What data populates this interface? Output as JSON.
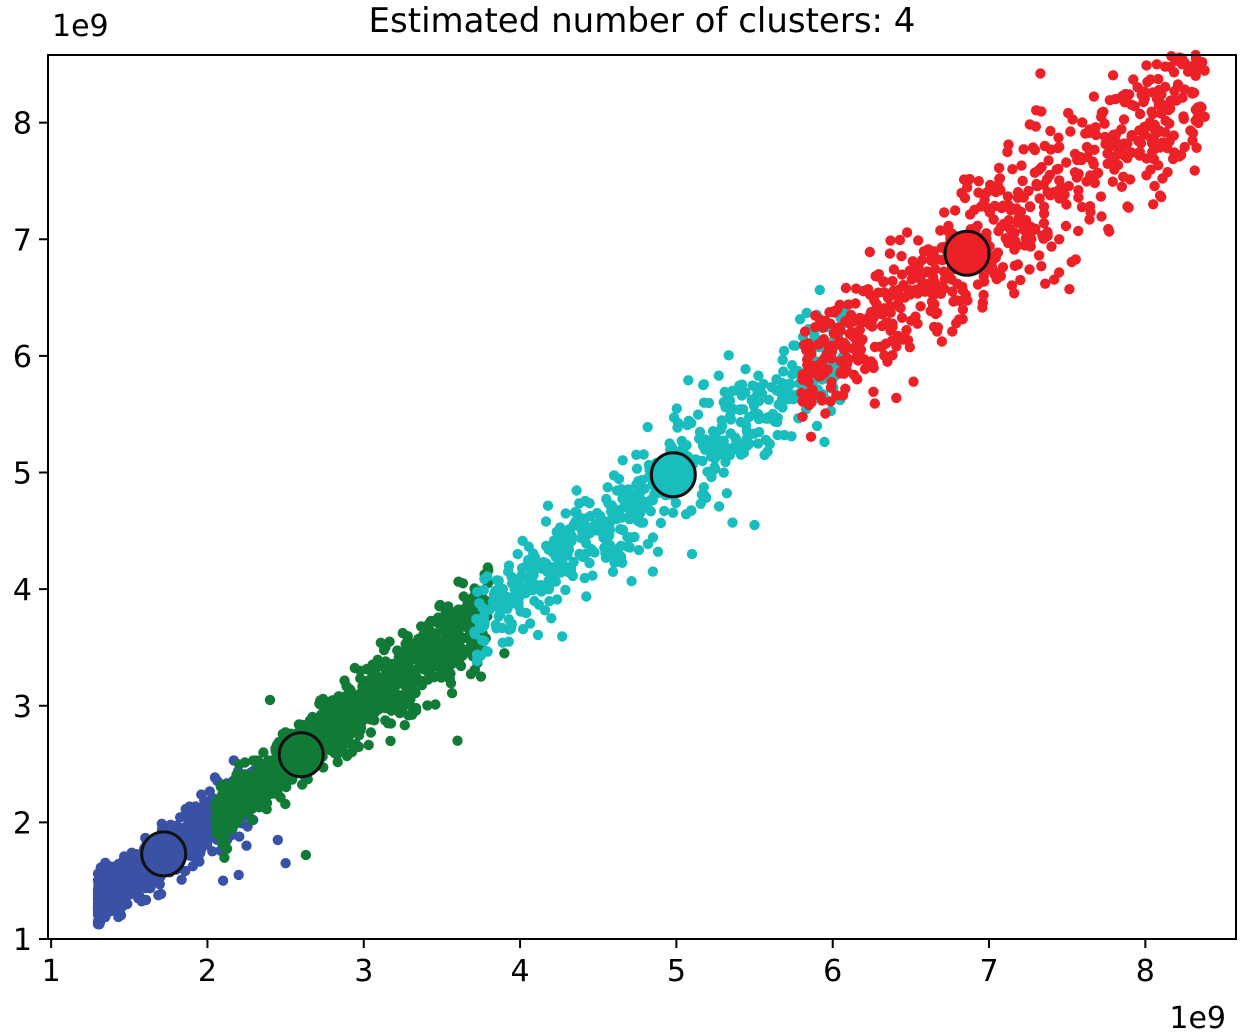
{
  "chart_data": {
    "type": "scatter",
    "title": "Estimated number of clusters: 4",
    "x_offset_text": "1e9",
    "y_offset_text": "1e9",
    "xlim": [
      0.98,
      8.58
    ],
    "ylim": [
      1.0,
      8.58
    ],
    "x_ticks": [
      1,
      2,
      3,
      4,
      5,
      6,
      7,
      8
    ],
    "y_ticks": [
      1,
      2,
      3,
      4,
      5,
      6,
      7,
      8
    ],
    "x_tick_labels": [
      "1",
      "2",
      "3",
      "4",
      "5",
      "6",
      "7",
      "8"
    ],
    "y_tick_labels": [
      "1",
      "2",
      "3",
      "4",
      "5",
      "6",
      "7",
      "8"
    ],
    "grid": false,
    "series": [
      {
        "color": "#3a52a6",
        "x_range": [
          1.3,
          2.3
        ],
        "centroid": [
          1.72,
          1.73
        ],
        "points_approx": 900,
        "outliers": [
          [
            2.1,
            1.5
          ],
          [
            2.5,
            1.65
          ],
          [
            2.45,
            1.85
          ],
          [
            2.25,
            1.8
          ],
          [
            2.2,
            1.55
          ]
        ]
      },
      {
        "color": "#127a37",
        "x_range": [
          2.05,
          3.8
        ],
        "centroid": [
          2.6,
          2.58
        ],
        "points_approx": 1000,
        "outliers": [
          [
            2.63,
            1.72
          ],
          [
            3.6,
            2.7
          ],
          [
            2.5,
            2.35
          ],
          [
            3.9,
            3.45
          ],
          [
            3.75,
            3.25
          ],
          [
            2.4,
            3.05
          ]
        ]
      },
      {
        "color": "#19bdbd",
        "x_range": [
          3.7,
          6.1
        ],
        "centroid": [
          4.98,
          4.98
        ],
        "points_approx": 600,
        "outliers": [
          [
            4.85,
            4.15
          ],
          [
            5.1,
            4.3
          ],
          [
            5.5,
            4.55
          ],
          [
            4.7,
            4.6
          ],
          [
            4.2,
            3.75
          ],
          [
            5.9,
            5.4
          ]
        ]
      },
      {
        "color": "#ec2127",
        "x_range": [
          5.8,
          8.38
        ],
        "centroid": [
          6.86,
          6.88
        ],
        "points_approx": 700,
        "outliers": [
          [
            6.05,
            5.85
          ],
          [
            6.35,
            5.95
          ],
          [
            8.05,
            7.3
          ],
          [
            7.85,
            7.45
          ],
          [
            8.38,
            8.05
          ],
          [
            7.2,
            6.65
          ]
        ]
      }
    ]
  }
}
